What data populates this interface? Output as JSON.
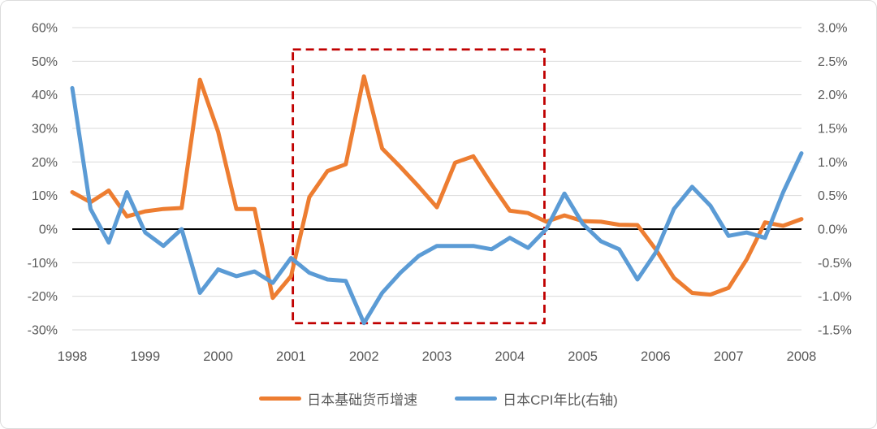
{
  "chart_data": {
    "type": "line",
    "title": "",
    "x_axis": {
      "year_labels": [
        "1998",
        "1999",
        "2000",
        "2001",
        "2002",
        "2003",
        "2004",
        "2005",
        "2006",
        "2007",
        "2008"
      ],
      "points_per_year": 4,
      "frequency": "quarterly",
      "first_point": "1998Q1",
      "last_point": "2008Q1"
    },
    "left_axis": {
      "ticks": [
        "60%",
        "50%",
        "40%",
        "30%",
        "20%",
        "10%",
        "0%",
        "-10%",
        "-20%",
        "-30%"
      ],
      "max": 60,
      "min": -30,
      "step": 10,
      "unit": "%"
    },
    "right_axis": {
      "ticks": [
        "3.0%",
        "2.5%",
        "2.0%",
        "1.5%",
        "1.0%",
        "0.5%",
        "0.0%",
        "-0.5%",
        "-1.0%",
        "-1.5%"
      ],
      "max": 3.0,
      "min": -1.5,
      "step": 0.5,
      "unit": "%"
    },
    "grid": {
      "gridline_color": "#d9d9d9",
      "zero_line_color": "#000000"
    },
    "series": [
      {
        "name": "日本基础货币增速",
        "axis": "left",
        "color": "#ED7D31",
        "values": [
          11,
          8,
          11.5,
          3.8,
          5.3,
          6,
          6.3,
          44.5,
          29,
          6,
          6,
          -20.5,
          -14,
          9.5,
          17.3,
          19.3,
          45.5,
          24,
          18.5,
          12.7,
          6.5,
          19.8,
          21.7,
          13.3,
          5.5,
          4.8,
          2.2,
          4.1,
          2.4,
          2.2,
          1.3,
          1.2,
          -6,
          -14.5,
          -19,
          -19.5,
          -17.5,
          -9,
          2,
          1,
          3
        ]
      },
      {
        "name": "日本CPI年比(右轴)",
        "axis": "right",
        "color": "#5B9BD5",
        "values": [
          2.1,
          0.3,
          -0.2,
          0.55,
          -0.05,
          -0.25,
          0,
          -0.95,
          -0.6,
          -0.7,
          -0.63,
          -0.8,
          -0.43,
          -0.65,
          -0.75,
          -0.77,
          -1.4,
          -0.95,
          -0.65,
          -0.4,
          -0.25,
          -0.25,
          -0.25,
          -0.3,
          -0.13,
          -0.28,
          0,
          0.53,
          0.08,
          -0.18,
          -0.3,
          -0.75,
          -0.35,
          0.3,
          0.63,
          0.35,
          -0.1,
          -0.05,
          -0.13,
          0.55,
          1.13
        ]
      }
    ],
    "annotation_box": {
      "color": "#C00000",
      "style": "dashed",
      "x_from_index": 12.1,
      "x_to_index": 25.9,
      "x_from_label": "2001Q1",
      "x_to_label": "2004Q3",
      "top_left_scale": 53.5,
      "bottom_left_scale": -28
    },
    "legend_position": "bottom-center"
  },
  "legend": {
    "items": [
      {
        "label": "日本基础货币增速",
        "color": "#ED7D31"
      },
      {
        "label": "日本CPI年比(右轴)",
        "color": "#5B9BD5"
      }
    ]
  },
  "colors": {
    "background": "#ffffff",
    "border": "#dcdcdc",
    "axis_text": "#595959",
    "gridline": "#d9d9d9",
    "zero_line": "#000000",
    "series_base_money": "#ED7D31",
    "series_cpi": "#5B9BD5",
    "annotation_box": "#C00000"
  }
}
